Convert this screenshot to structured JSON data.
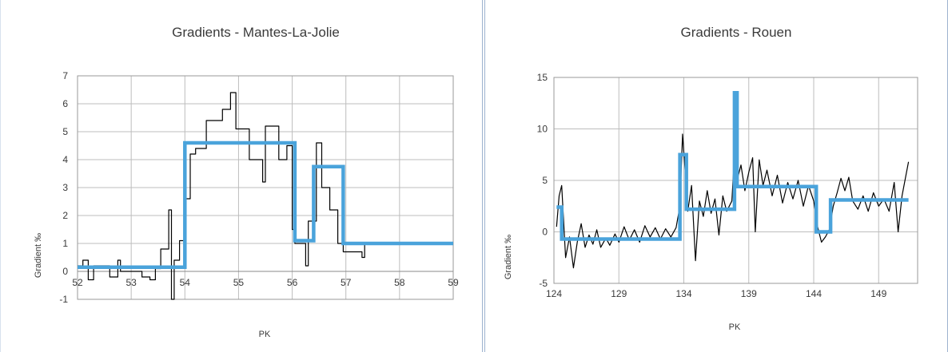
{
  "chart_data": [
    {
      "type": "line",
      "title": "Gradients - Mantes-La-Jolie",
      "xlabel": "PK",
      "ylabel": "Gradient ‰",
      "xlim": [
        52,
        59
      ],
      "ylim": [
        -1,
        7
      ],
      "xticks": [
        52,
        53,
        54,
        55,
        56,
        57,
        58,
        59
      ],
      "yticks": [
        -1,
        0,
        1,
        2,
        3,
        4,
        5,
        6,
        7
      ],
      "grid": true,
      "legend": "none",
      "series": [
        {
          "style": "thin-step",
          "color": "#000000",
          "points": [
            [
              52.0,
              0.2
            ],
            [
              52.1,
              0.2
            ],
            [
              52.1,
              0.4
            ],
            [
              52.2,
              0.4
            ],
            [
              52.2,
              -0.3
            ],
            [
              52.3,
              -0.3
            ],
            [
              52.3,
              0.2
            ],
            [
              52.6,
              0.2
            ],
            [
              52.6,
              -0.2
            ],
            [
              52.75,
              -0.2
            ],
            [
              52.75,
              0.4
            ],
            [
              52.8,
              0.4
            ],
            [
              52.8,
              0.0
            ],
            [
              53.2,
              0.0
            ],
            [
              53.2,
              -0.2
            ],
            [
              53.35,
              -0.2
            ],
            [
              53.35,
              -0.3
            ],
            [
              53.45,
              -0.3
            ],
            [
              53.45,
              0.1
            ],
            [
              53.55,
              0.1
            ],
            [
              53.55,
              0.8
            ],
            [
              53.7,
              0.8
            ],
            [
              53.7,
              2.2
            ],
            [
              53.75,
              2.2
            ],
            [
              53.75,
              -1.0
            ],
            [
              53.8,
              -1.0
            ],
            [
              53.8,
              0.4
            ],
            [
              53.9,
              0.4
            ],
            [
              53.9,
              1.1
            ],
            [
              54.0,
              1.1
            ],
            [
              54.0,
              2.6
            ],
            [
              54.1,
              2.6
            ],
            [
              54.1,
              4.2
            ],
            [
              54.2,
              4.2
            ],
            [
              54.2,
              4.4
            ],
            [
              54.4,
              4.4
            ],
            [
              54.4,
              5.4
            ],
            [
              54.7,
              5.4
            ],
            [
              54.7,
              5.8
            ],
            [
              54.85,
              5.8
            ],
            [
              54.85,
              6.4
            ],
            [
              54.95,
              6.4
            ],
            [
              54.95,
              5.1
            ],
            [
              55.2,
              5.1
            ],
            [
              55.2,
              4.0
            ],
            [
              55.45,
              4.0
            ],
            [
              55.45,
              3.2
            ],
            [
              55.5,
              3.2
            ],
            [
              55.5,
              5.2
            ],
            [
              55.75,
              5.2
            ],
            [
              55.75,
              4.0
            ],
            [
              55.9,
              4.0
            ],
            [
              55.9,
              4.5
            ],
            [
              56.0,
              4.5
            ],
            [
              56.0,
              1.5
            ],
            [
              56.05,
              1.5
            ],
            [
              56.05,
              1.0
            ],
            [
              56.25,
              1.0
            ],
            [
              56.25,
              0.2
            ],
            [
              56.3,
              0.2
            ],
            [
              56.3,
              1.8
            ],
            [
              56.45,
              1.8
            ],
            [
              56.45,
              4.6
            ],
            [
              56.55,
              4.6
            ],
            [
              56.55,
              3.0
            ],
            [
              56.7,
              3.0
            ],
            [
              56.7,
              2.2
            ],
            [
              56.85,
              2.2
            ],
            [
              56.85,
              1.0
            ],
            [
              56.95,
              1.0
            ],
            [
              56.95,
              0.7
            ],
            [
              57.3,
              0.7
            ],
            [
              57.3,
              0.5
            ],
            [
              57.35,
              0.5
            ],
            [
              57.35,
              1.0
            ],
            [
              59.0,
              1.0
            ]
          ]
        },
        {
          "style": "thick-step",
          "color": "#4aa3db",
          "points": [
            [
              52.0,
              0.15
            ],
            [
              54.0,
              0.15
            ],
            [
              54.0,
              4.6
            ],
            [
              56.05,
              4.6
            ],
            [
              56.05,
              1.1
            ],
            [
              56.4,
              1.1
            ],
            [
              56.4,
              3.75
            ],
            [
              56.95,
              3.75
            ],
            [
              56.95,
              1.0
            ],
            [
              59.0,
              1.0
            ]
          ]
        }
      ]
    },
    {
      "type": "line",
      "title": "Gradients - Rouen",
      "xlabel": "PK",
      "ylabel": "Gradient ‰",
      "xlim": [
        124,
        152
      ],
      "ylim": [
        -5,
        15
      ],
      "xticks": [
        124,
        129,
        134,
        139,
        144,
        149
      ],
      "yticks": [
        -5,
        0,
        5,
        10,
        15
      ],
      "grid": true,
      "legend": "none",
      "series": [
        {
          "style": "thin-jagged",
          "color": "#000000",
          "points": [
            [
              124.2,
              0.5
            ],
            [
              124.4,
              3.5
            ],
            [
              124.6,
              4.5
            ],
            [
              124.9,
              -2.5
            ],
            [
              125.2,
              -0.5
            ],
            [
              125.5,
              -3.5
            ],
            [
              125.8,
              -1.0
            ],
            [
              126.1,
              0.8
            ],
            [
              126.4,
              -1.5
            ],
            [
              126.7,
              -0.3
            ],
            [
              127.0,
              -1.2
            ],
            [
              127.3,
              0.2
            ],
            [
              127.6,
              -1.5
            ],
            [
              128.0,
              -0.6
            ],
            [
              128.3,
              -1.3
            ],
            [
              128.7,
              -0.2
            ],
            [
              129.0,
              -1.0
            ],
            [
              129.4,
              0.5
            ],
            [
              129.8,
              -0.8
            ],
            [
              130.2,
              0.2
            ],
            [
              130.6,
              -1.0
            ],
            [
              131.0,
              0.6
            ],
            [
              131.4,
              -0.5
            ],
            [
              131.8,
              0.4
            ],
            [
              132.2,
              -0.7
            ],
            [
              132.6,
              0.3
            ],
            [
              133.0,
              -0.5
            ],
            [
              133.4,
              0.4
            ],
            [
              133.7,
              2.5
            ],
            [
              133.9,
              9.5
            ],
            [
              134.1,
              6.0
            ],
            [
              134.3,
              2.0
            ],
            [
              134.6,
              4.5
            ],
            [
              134.9,
              -2.8
            ],
            [
              135.2,
              3.0
            ],
            [
              135.5,
              1.5
            ],
            [
              135.8,
              4.0
            ],
            [
              136.1,
              1.8
            ],
            [
              136.4,
              3.2
            ],
            [
              136.7,
              -0.3
            ],
            [
              137.0,
              3.5
            ],
            [
              137.3,
              2.0
            ],
            [
              137.7,
              3.0
            ],
            [
              137.9,
              7.5
            ],
            [
              138.1,
              5.0
            ],
            [
              138.4,
              6.5
            ],
            [
              138.7,
              4.0
            ],
            [
              139.0,
              5.8
            ],
            [
              139.3,
              7.2
            ],
            [
              139.5,
              0.0
            ],
            [
              139.8,
              7.0
            ],
            [
              140.1,
              4.5
            ],
            [
              140.4,
              6.0
            ],
            [
              140.8,
              3.5
            ],
            [
              141.2,
              5.5
            ],
            [
              141.6,
              2.8
            ],
            [
              142.0,
              4.8
            ],
            [
              142.4,
              3.2
            ],
            [
              142.8,
              5.0
            ],
            [
              143.2,
              2.5
            ],
            [
              143.6,
              4.5
            ],
            [
              144.0,
              3.0
            ],
            [
              144.3,
              0.5
            ],
            [
              144.6,
              -1.0
            ],
            [
              144.9,
              -0.5
            ],
            [
              145.2,
              0.2
            ],
            [
              145.5,
              2.5
            ],
            [
              145.8,
              3.8
            ],
            [
              146.1,
              5.2
            ],
            [
              146.4,
              4.0
            ],
            [
              146.7,
              5.3
            ],
            [
              147.0,
              3.0
            ],
            [
              147.4,
              2.2
            ],
            [
              147.8,
              3.5
            ],
            [
              148.2,
              2.0
            ],
            [
              148.6,
              3.8
            ],
            [
              149.0,
              2.5
            ],
            [
              149.4,
              3.2
            ],
            [
              149.8,
              2.0
            ],
            [
              150.2,
              4.8
            ],
            [
              150.5,
              0.0
            ],
            [
              150.8,
              3.5
            ],
            [
              151.1,
              5.5
            ],
            [
              151.3,
              6.8
            ]
          ]
        },
        {
          "style": "thick-step",
          "color": "#4aa3db",
          "points": [
            [
              124.2,
              2.4
            ],
            [
              124.6,
              2.4
            ],
            [
              124.6,
              -0.7
            ],
            [
              133.7,
              -0.7
            ],
            [
              133.7,
              7.5
            ],
            [
              134.2,
              7.5
            ],
            [
              134.2,
              2.2
            ],
            [
              137.9,
              2.2
            ],
            [
              137.9,
              13.5
            ],
            [
              138.1,
              13.5
            ],
            [
              138.1,
              4.4
            ],
            [
              144.2,
              4.4
            ],
            [
              144.2,
              0.0
            ],
            [
              145.3,
              0.0
            ],
            [
              145.3,
              3.1
            ],
            [
              151.3,
              3.1
            ]
          ]
        }
      ]
    }
  ]
}
